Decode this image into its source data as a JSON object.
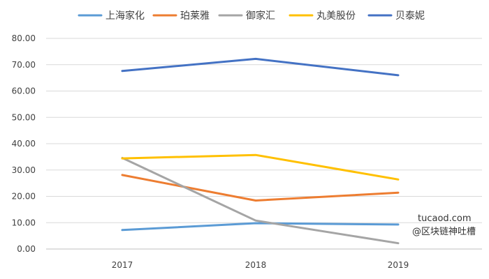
{
  "chart_data": {
    "type": "line",
    "categories": [
      "2017",
      "2018",
      "2019"
    ],
    "series": [
      {
        "name": "上海家化",
        "color": "#5b9bd5",
        "values": [
          7.2,
          9.8,
          9.3
        ]
      },
      {
        "name": "珀莱雅",
        "color": "#ed7d31",
        "values": [
          28.1,
          18.4,
          21.4
        ]
      },
      {
        "name": "御家汇",
        "color": "#a5a5a5",
        "values": [
          34.6,
          10.8,
          2.2
        ]
      },
      {
        "name": "丸美股份",
        "color": "#ffc000",
        "values": [
          34.4,
          35.7,
          26.4
        ]
      },
      {
        "name": "贝泰妮",
        "color": "#4472c4",
        "values": [
          67.6,
          72.2,
          66.0
        ]
      }
    ],
    "yticks": [
      "0.00",
      "10.00",
      "20.00",
      "30.00",
      "40.00",
      "50.00",
      "60.00",
      "70.00",
      "80.00"
    ],
    "ylim": [
      0,
      80
    ],
    "grid": true,
    "legend_position": "top"
  },
  "watermark": {
    "site": "tucaod.com",
    "handle": "@区块链神吐槽"
  }
}
